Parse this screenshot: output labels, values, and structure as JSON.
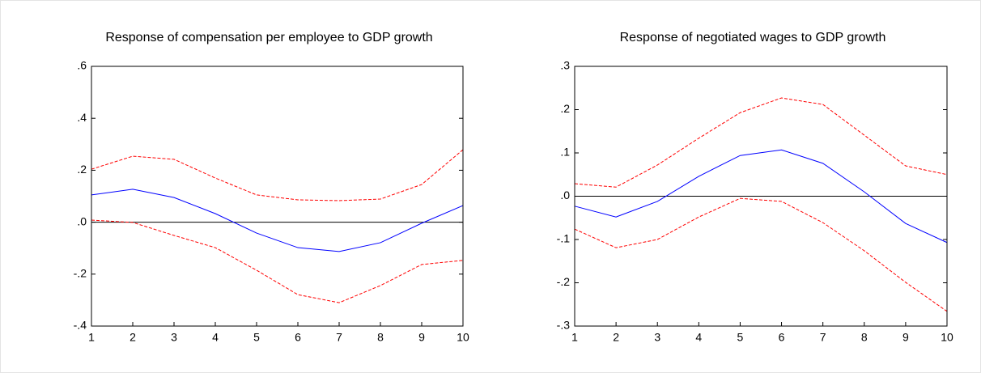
{
  "chart_data": [
    {
      "type": "line",
      "title": "Response of compensation per employee to GDP growth",
      "x": [
        1,
        2,
        3,
        4,
        5,
        6,
        7,
        8,
        9,
        10
      ],
      "xlim": [
        1,
        10
      ],
      "xticks": [
        1,
        2,
        3,
        4,
        5,
        6,
        7,
        8,
        9,
        10
      ],
      "ylim": [
        -0.4,
        0.6
      ],
      "yticks": [
        {
          "value": -0.4,
          "label": "-.4"
        },
        {
          "value": -0.2,
          "label": "-.2"
        },
        {
          "value": 0,
          "label": ".0"
        },
        {
          "value": 0.2,
          "label": ".2"
        },
        {
          "value": 0.4,
          "label": ".4"
        },
        {
          "value": 0.6,
          "label": ".6"
        }
      ],
      "zero_line": true,
      "series": [
        {
          "color": "#0000ff",
          "style": "solid",
          "values": [
            0.105,
            0.127,
            0.095,
            0.033,
            -0.042,
            -0.098,
            -0.113,
            -0.079,
            -0.004,
            0.064
          ]
        },
        {
          "color": "#ff0000",
          "style": "dashed",
          "values": [
            0.204,
            0.254,
            0.242,
            0.17,
            0.105,
            0.086,
            0.083,
            0.089,
            0.145,
            0.279
          ]
        },
        {
          "color": "#ff0000",
          "style": "dashed",
          "values": [
            0.008,
            -0.001,
            -0.051,
            -0.098,
            -0.185,
            -0.279,
            -0.31,
            -0.244,
            -0.163,
            -0.147
          ]
        }
      ]
    },
    {
      "type": "line",
      "title": "Response of negotiated wages to GDP growth",
      "x": [
        1,
        2,
        3,
        4,
        5,
        6,
        7,
        8,
        9,
        10
      ],
      "xlim": [
        1,
        10
      ],
      "xticks": [
        1,
        2,
        3,
        4,
        5,
        6,
        7,
        8,
        9,
        10
      ],
      "ylim": [
        -0.3,
        0.3
      ],
      "yticks": [
        {
          "value": -0.3,
          "label": "-.3"
        },
        {
          "value": -0.2,
          "label": "-.2"
        },
        {
          "value": -0.1,
          "label": "-.1"
        },
        {
          "value": 0,
          "label": ".0"
        },
        {
          "value": 0.1,
          "label": ".1"
        },
        {
          "value": 0.2,
          "label": ".2"
        },
        {
          "value": 0.3,
          "label": ".3"
        }
      ],
      "zero_line": true,
      "series": [
        {
          "color": "#0000ff",
          "style": "solid",
          "values": [
            -0.023,
            -0.048,
            -0.012,
            0.046,
            0.094,
            0.107,
            0.076,
            0.01,
            -0.063,
            -0.107
          ]
        },
        {
          "color": "#ff0000",
          "style": "dashed",
          "values": [
            0.029,
            0.021,
            0.072,
            0.134,
            0.193,
            0.227,
            0.212,
            0.141,
            0.07,
            0.05
          ]
        },
        {
          "color": "#ff0000",
          "style": "dashed",
          "values": [
            -0.076,
            -0.119,
            -0.1,
            -0.048,
            -0.005,
            -0.012,
            -0.061,
            -0.126,
            -0.199,
            -0.266
          ]
        }
      ]
    }
  ]
}
